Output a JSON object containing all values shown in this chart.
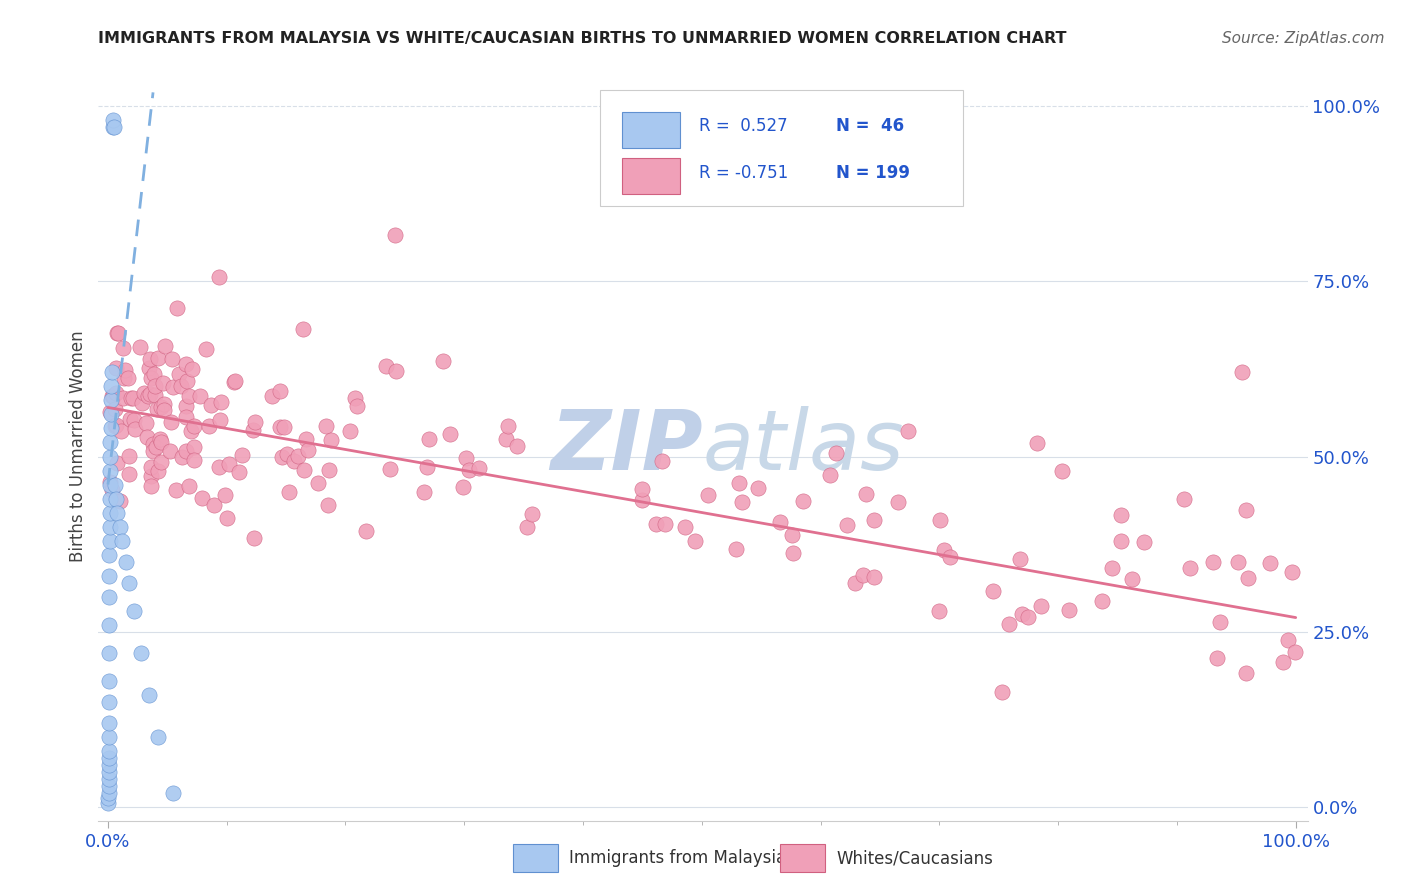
{
  "title": "IMMIGRANTS FROM MALAYSIA VS WHITE/CAUCASIAN BIRTHS TO UNMARRIED WOMEN CORRELATION CHART",
  "source": "Source: ZipAtlas.com",
  "ylabel": "Births to Unmarried Women",
  "ytick_labels": [
    "0.0%",
    "25.0%",
    "50.0%",
    "75.0%",
    "100.0%"
  ],
  "ytick_vals": [
    0.0,
    0.25,
    0.5,
    0.75,
    1.0
  ],
  "xtick_labels": [
    "0.0%",
    "100.0%"
  ],
  "xtick_vals": [
    0.0,
    1.0
  ],
  "legend_label_blue": "Immigrants from Malaysia",
  "legend_label_pink": "Whites/Caucasians",
  "blue_dot_color": "#a8c8f0",
  "blue_edge_color": "#6090d0",
  "pink_dot_color": "#f0a0b8",
  "pink_edge_color": "#d06080",
  "trendline_blue_color": "#80b0e0",
  "trendline_pink_color": "#e07090",
  "watermark_zip_color": "#c0d0e8",
  "watermark_atlas_color": "#c8d8e8",
  "grid_color": "#d8dfe8",
  "text_blue": "#2255cc",
  "title_color": "#222222",
  "source_color": "#666666",
  "ylabel_color": "#444444",
  "legend_border_color": "#cccccc"
}
